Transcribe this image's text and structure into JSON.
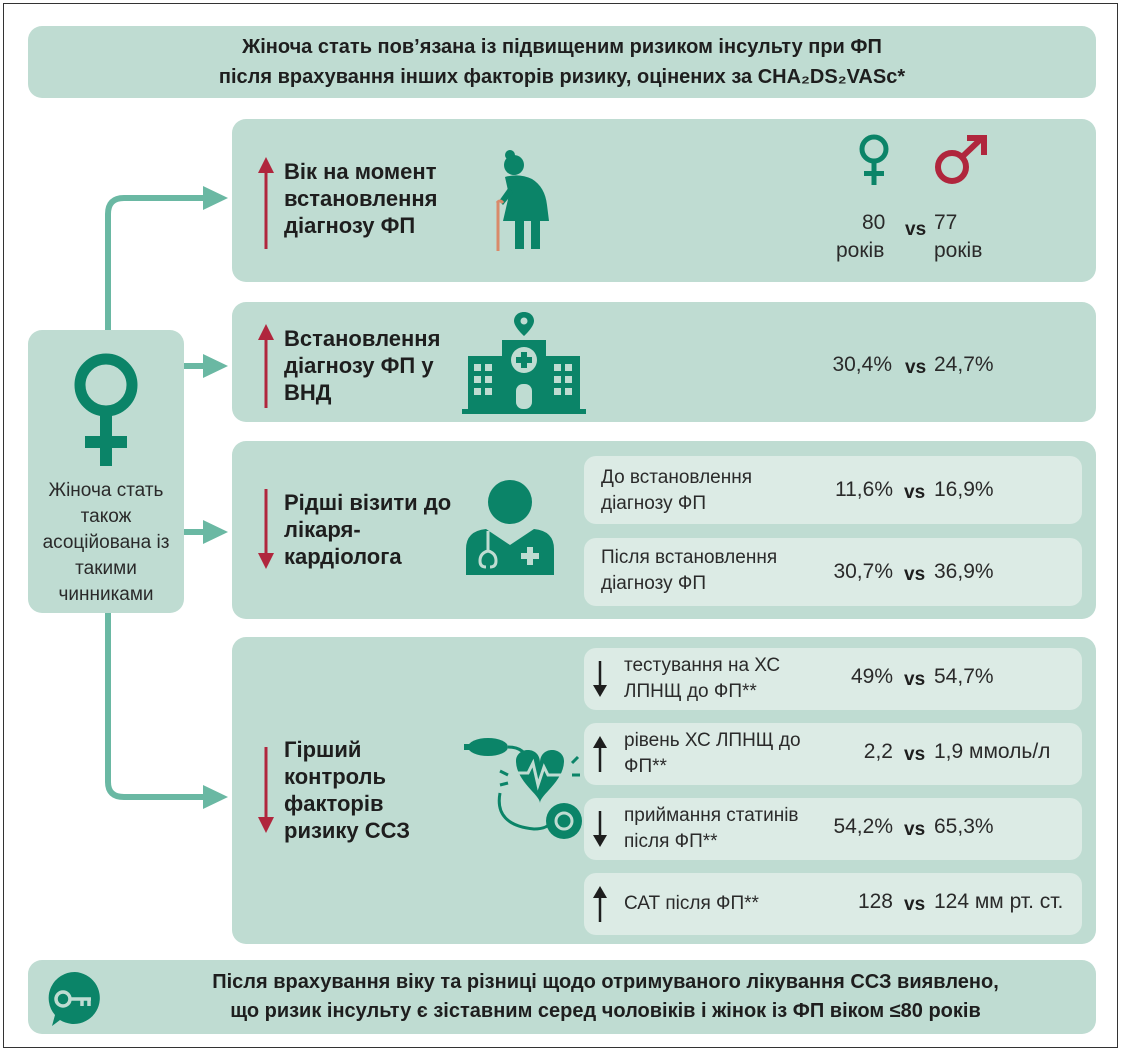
{
  "title": {
    "line1": "Жіноча стать пов’язана із підвищеним ризиком інсульту при ФП",
    "line2": "після врахування інших факторів ризику, оцінених за CHA₂DS₂VASc*"
  },
  "left_panel": {
    "text": "Жіноча стать також асоційована із такими чинниками"
  },
  "vs_label": "vs",
  "rows": [
    {
      "title": "Вік на момент встановлення діагнозу ФП",
      "direction": "up",
      "icon": "elderly-woman-icon",
      "female_value": "80",
      "female_unit": "років",
      "male_value": "77",
      "male_unit": "років"
    },
    {
      "title": "Встановлення діагнозу ФП у ВНД",
      "direction": "up",
      "icon": "hospital-icon",
      "female_value": "30,4%",
      "male_value": "24,7%"
    },
    {
      "title": "Рідші візити до лікаря-кардіолога",
      "direction": "down",
      "icon": "doctor-icon",
      "items": [
        {
          "label": "До встановлення діагнозу ФП",
          "female_value": "11,6%",
          "male_value": "16,9%"
        },
        {
          "label": "Після встановлення діагнозу ФП",
          "female_value": "30,7%",
          "male_value": "36,9%"
        }
      ]
    },
    {
      "title": "Гірший контроль факторів ризику ССЗ",
      "direction": "down",
      "icon": "blood-pressure-heart-icon",
      "items": [
        {
          "label": "тестування на ХС ЛПНЩ до ФП**",
          "direction": "down",
          "female_value": "49%",
          "male_value": "54,7%"
        },
        {
          "label": "рівень ХС ЛПНЩ до ФП**",
          "direction": "up",
          "female_value": "2,2",
          "male_value": "1,9 ммоль/л"
        },
        {
          "label": "приймання статинів після ФП**",
          "direction": "down",
          "female_value": "54,2%",
          "male_value": "65,3%"
        },
        {
          "label": "САТ після ФП**",
          "direction": "up",
          "female_value": "128",
          "male_value": "124 мм рт. ст."
        }
      ]
    }
  ],
  "bottom": {
    "icon": "key-icon",
    "line1": "Після врахування віку та різниці щодо отримуваного лікування ССЗ виявлено,",
    "line2": "що ризик інсульту є зіставним серед чоловіків і жінок із ФП віком ≤80 років"
  },
  "colors": {
    "accent": "#0b8468",
    "panel": "#bfdcd2",
    "subpanel": "#dcebe5",
    "arrow_red": "#b0263d",
    "connector": "#6ab8a3",
    "male": "#b0263d"
  }
}
